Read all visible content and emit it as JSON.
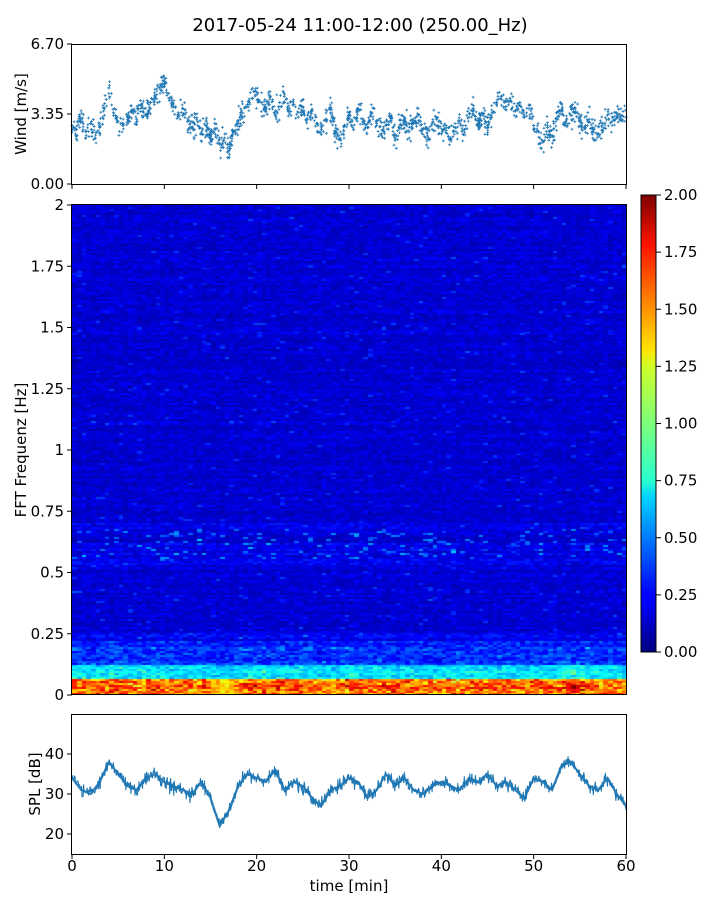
{
  "title": "2017-05-24 11:00-12:00 (250.00_Hz)",
  "chart_data": [
    {
      "type": "scatter",
      "panel": "wind",
      "ylabel": "Wind [m/s]",
      "xlim": [
        0,
        60
      ],
      "ylim": [
        0,
        6.7
      ],
      "yticks": [
        "0.00",
        "3.35",
        "6.70"
      ],
      "marker_color": "#1f77b4",
      "x": [
        0.0,
        0.5,
        1.0,
        1.5,
        2.0,
        2.5,
        3.0,
        3.5,
        4.0,
        4.5,
        5.0,
        5.5,
        6.0,
        6.5,
        7.0,
        7.5,
        8.0,
        8.5,
        9.0,
        9.5,
        10.0,
        10.5,
        11.0,
        11.5,
        12.0,
        12.5,
        13.0,
        13.5,
        14.0,
        14.5,
        15.0,
        15.5,
        16.0,
        16.5,
        17.0,
        17.5,
        18.0,
        18.5,
        19.0,
        19.5,
        20.0,
        20.5,
        21.0,
        21.5,
        22.0,
        22.5,
        23.0,
        23.5,
        24.0,
        24.5,
        25.0,
        25.5,
        26.0,
        26.5,
        27.0,
        27.5,
        28.0,
        28.5,
        29.0,
        29.5,
        30.0,
        30.5,
        31.0,
        31.5,
        32.0,
        32.5,
        33.0,
        33.5,
        34.0,
        34.5,
        35.0,
        35.5,
        36.0,
        36.5,
        37.0,
        37.5,
        38.0,
        38.5,
        39.0,
        39.5,
        40.0,
        40.5,
        41.0,
        41.5,
        42.0,
        42.5,
        43.0,
        43.5,
        44.0,
        44.5,
        45.0,
        45.5,
        46.0,
        46.5,
        47.0,
        47.5,
        48.0,
        48.5,
        49.0,
        49.5,
        50.0,
        50.5,
        51.0,
        51.5,
        52.0,
        52.5,
        53.0,
        53.5,
        54.0,
        54.5,
        55.0,
        55.5,
        56.0,
        56.5,
        57.0,
        57.5,
        58.0,
        58.5,
        59.0,
        59.5,
        60.0
      ],
      "y": [
        2.8,
        2.6,
        3.1,
        2.5,
        2.9,
        2.2,
        2.7,
        3.6,
        4.6,
        3.4,
        3.0,
        2.8,
        3.2,
        3.5,
        3.1,
        3.8,
        3.3,
        3.9,
        4.2,
        4.6,
        4.9,
        4.1,
        3.7,
        3.2,
        3.6,
        3.0,
        2.7,
        3.1,
        2.4,
        2.8,
        2.3,
        2.6,
        1.9,
        2.2,
        1.6,
        2.5,
        2.9,
        3.4,
        3.8,
        4.1,
        4.4,
        3.9,
        3.6,
        4.2,
        3.3,
        3.9,
        4.3,
        3.5,
        3.8,
        3.2,
        3.7,
        3.1,
        3.5,
        2.9,
        2.6,
        3.1,
        3.4,
        2.5,
        2.2,
        2.8,
        3.3,
        2.6,
        3.6,
        3.0,
        2.7,
        3.4,
        2.9,
        2.4,
        2.8,
        3.2,
        2.1,
        2.7,
        3.1,
        2.5,
        2.9,
        3.3,
        2.6,
        2.3,
        2.9,
        3.1,
        2.4,
        2.8,
        2.2,
        2.7,
        3.0,
        2.6,
        3.2,
        3.6,
        2.9,
        3.3,
        2.8,
        3.4,
        3.9,
        4.2,
        3.7,
        4.0,
        3.5,
        3.9,
        3.2,
        3.6,
        2.8,
        2.5,
        2.0,
        2.7,
        2.3,
        3.1,
        3.5,
        2.9,
        3.3,
        3.6,
        3.0,
        2.7,
        3.1,
        2.6,
        2.4,
        2.9,
        3.3,
        3.0,
        3.4,
        3.1,
        3.2
      ]
    },
    {
      "type": "heatmap",
      "panel": "spectrogram",
      "ylabel": "FFT Frequenz [Hz]",
      "xlim": [
        0,
        60
      ],
      "ylim": [
        0,
        2
      ],
      "yticks": [
        "0",
        "0.25",
        "0.5",
        "0.75",
        "1",
        "1.25",
        "1.5",
        "1.75",
        "2"
      ],
      "colormap": "jet",
      "colorbar": {
        "range": [
          0,
          2
        ],
        "ticks": [
          "0.00",
          "0.25",
          "0.50",
          "0.75",
          "1.00",
          "1.25",
          "1.50",
          "1.75",
          "2.00"
        ]
      }
    },
    {
      "type": "line",
      "panel": "spl",
      "ylabel": "SPL [dB]",
      "xlabel": "time [min]",
      "xlim": [
        0,
        60
      ],
      "ylim": [
        15,
        50
      ],
      "yticks": [
        "20",
        "30",
        "40"
      ],
      "xticks": [
        "0",
        "10",
        "20",
        "30",
        "40",
        "50",
        "60"
      ],
      "line_color": "#1f77b4",
      "x": [
        0,
        1,
        2,
        3,
        4,
        5,
        6,
        7,
        8,
        9,
        10,
        11,
        12,
        13,
        14,
        15,
        16,
        17,
        18,
        19,
        20,
        21,
        22,
        23,
        24,
        25,
        26,
        27,
        28,
        29,
        30,
        31,
        32,
        33,
        34,
        35,
        36,
        37,
        38,
        39,
        40,
        41,
        42,
        43,
        44,
        45,
        46,
        47,
        48,
        49,
        50,
        51,
        52,
        53,
        54,
        55,
        56,
        57,
        58,
        59,
        60
      ],
      "y": [
        34,
        31,
        30,
        33,
        38,
        35,
        32,
        31,
        34,
        35,
        33,
        32,
        31,
        30,
        33,
        29,
        22,
        26,
        32,
        35,
        34,
        33,
        36,
        31,
        33,
        32,
        29,
        27,
        31,
        32,
        34,
        33,
        29,
        31,
        35,
        32,
        34,
        31,
        30,
        32,
        33,
        32,
        31,
        34,
        33,
        35,
        32,
        33,
        31,
        29,
        34,
        33,
        31,
        37,
        38,
        35,
        32,
        31,
        34,
        30,
        27
      ]
    }
  ]
}
